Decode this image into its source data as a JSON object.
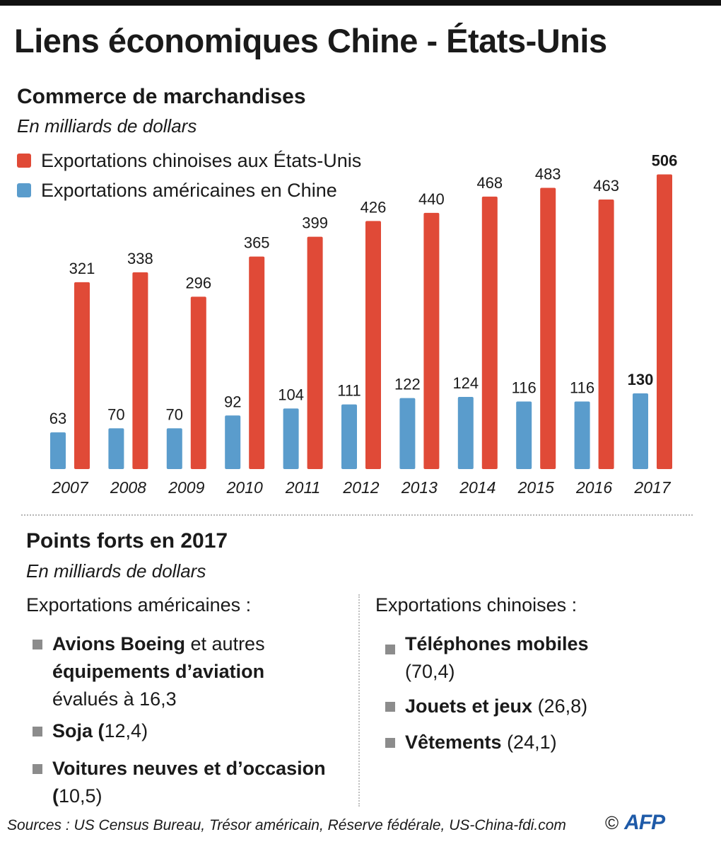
{
  "title": "Liens économiques Chine - États-Unis",
  "section1": {
    "title": "Commerce de marchandises",
    "unit": "En milliards de dollars"
  },
  "legend": [
    {
      "label": "Exportations chinoises aux États-Unis",
      "color": "#e04a37"
    },
    {
      "label": "Exportations américaines en Chine",
      "color": "#5a9ccc"
    }
  ],
  "chart_data": {
    "type": "bar",
    "categories": [
      "2007",
      "2008",
      "2009",
      "2010",
      "2011",
      "2012",
      "2013",
      "2014",
      "2015",
      "2016",
      "2017"
    ],
    "series": [
      {
        "name": "Exportations américaines en Chine",
        "color": "#5a9ccc",
        "values": [
          63,
          70,
          70,
          92,
          104,
          111,
          122,
          124,
          116,
          116,
          130
        ]
      },
      {
        "name": "Exportations chinoises aux États-Unis",
        "color": "#e04a37",
        "values": [
          321,
          338,
          296,
          365,
          399,
          426,
          440,
          468,
          483,
          463,
          506
        ]
      }
    ],
    "highlight_category": "2017",
    "ylim": [
      0,
      506
    ],
    "xlabel": "",
    "ylabel": "",
    "grid": false,
    "legend_position": "top-left"
  },
  "section2": {
    "title": "Points forts en 2017",
    "unit": "En milliards de dollars",
    "us": {
      "title": "Exportations américaines :",
      "item1": {
        "bold1": "Avions Boeing",
        "text1": " et autres",
        "bold2": "équipements d’aviation",
        "text2": "évalués à 16,3"
      },
      "item2": {
        "bold": "Soja (",
        "text": "12,4)"
      },
      "item3": {
        "bold": "Voitures neuves et d’occasion",
        "bold2": "(",
        "text": "10,5)"
      }
    },
    "china": {
      "title": "Exportations chinoises :",
      "item1": {
        "bold": "Téléphones mobiles",
        "text": "(70,4)"
      },
      "item2": {
        "bold": "Jouets et jeux",
        "text": " (26,8)"
      },
      "item3": {
        "bold": "Vêtements",
        "text": " (24,1)"
      }
    }
  },
  "footer": {
    "sources": "Sources : US Census Bureau, Trésor américain, Réserve fédérale, US-China-fdi.com",
    "copyright": "©",
    "logo": "AFP"
  }
}
